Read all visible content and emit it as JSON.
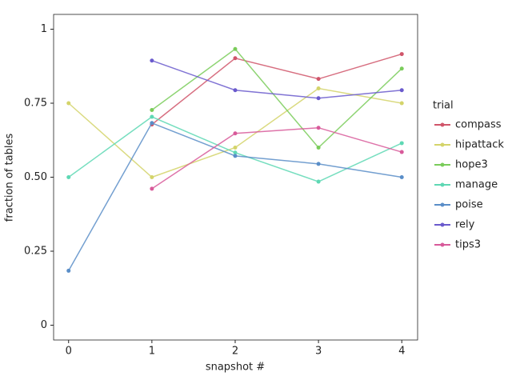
{
  "chart_data": {
    "type": "line",
    "xlabel": "snapshot #",
    "ylabel": "fraction of tables",
    "x": [
      0,
      1,
      2,
      3,
      4
    ],
    "xlim": [
      -0.18,
      4.19
    ],
    "xticks": [
      0,
      1,
      2,
      3,
      4
    ],
    "ylim": [
      -0.05,
      1.05
    ],
    "yticks": [
      0,
      0.25,
      {
        "value": 0.5,
        "label": "0.50"
      },
      0.75,
      1
    ],
    "legend_title": "trial",
    "legend": "right",
    "series": [
      {
        "name": "compass",
        "color": "#d0556a",
        "values": [
          null,
          0.678,
          0.902,
          0.832,
          0.916
        ]
      },
      {
        "name": "hipattack",
        "color": "#d4d46a",
        "values": [
          0.75,
          0.5,
          0.6,
          0.8,
          0.75
        ]
      },
      {
        "name": "hope3",
        "color": "#7acc5a",
        "values": [
          null,
          0.727,
          0.933,
          0.6,
          0.867
        ]
      },
      {
        "name": "manage",
        "color": "#5ed8b4",
        "values": [
          0.5,
          0.704,
          0.583,
          0.485,
          0.615
        ]
      },
      {
        "name": "poise",
        "color": "#5a8ec8",
        "values": [
          0.184,
          0.683,
          0.572,
          0.545,
          0.5
        ]
      },
      {
        "name": "rely",
        "color": "#6a5acd",
        "values": [
          null,
          0.894,
          0.794,
          0.767,
          0.794
        ]
      },
      {
        "name": "tips3",
        "color": "#d85a9a",
        "values": [
          null,
          0.461,
          0.648,
          0.667,
          0.585
        ]
      }
    ]
  }
}
